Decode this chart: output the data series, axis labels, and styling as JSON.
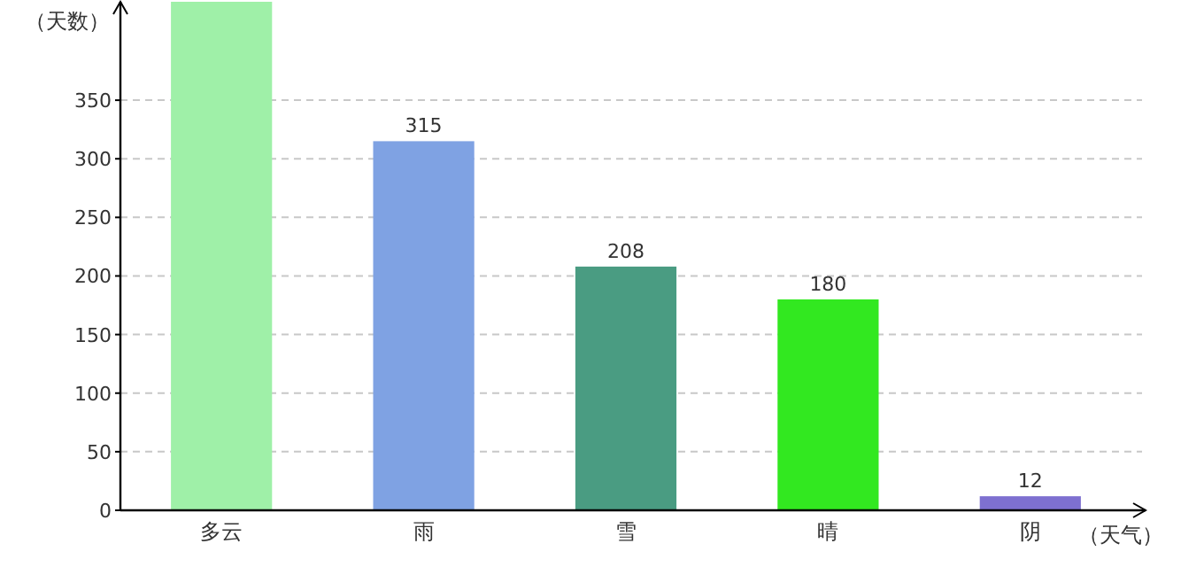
{
  "chart_data": {
    "type": "bar",
    "xlabel": "（天气）",
    "ylabel": "（天数）",
    "categories": [
      "多云",
      "雨",
      "雪",
      "晴",
      "阴"
    ],
    "values": [
      434,
      315,
      208,
      180,
      12
    ],
    "colors": [
      "#9ff0a8",
      "#7fa2e3",
      "#4a9c82",
      "#32e820",
      "#7e70d0"
    ],
    "value_labels": [
      null,
      "315",
      "208",
      "180",
      "12"
    ],
    "ylim": [
      0,
      434
    ],
    "yticks": [
      0,
      50,
      100,
      150,
      200,
      250,
      300,
      350
    ],
    "grid": "y"
  }
}
